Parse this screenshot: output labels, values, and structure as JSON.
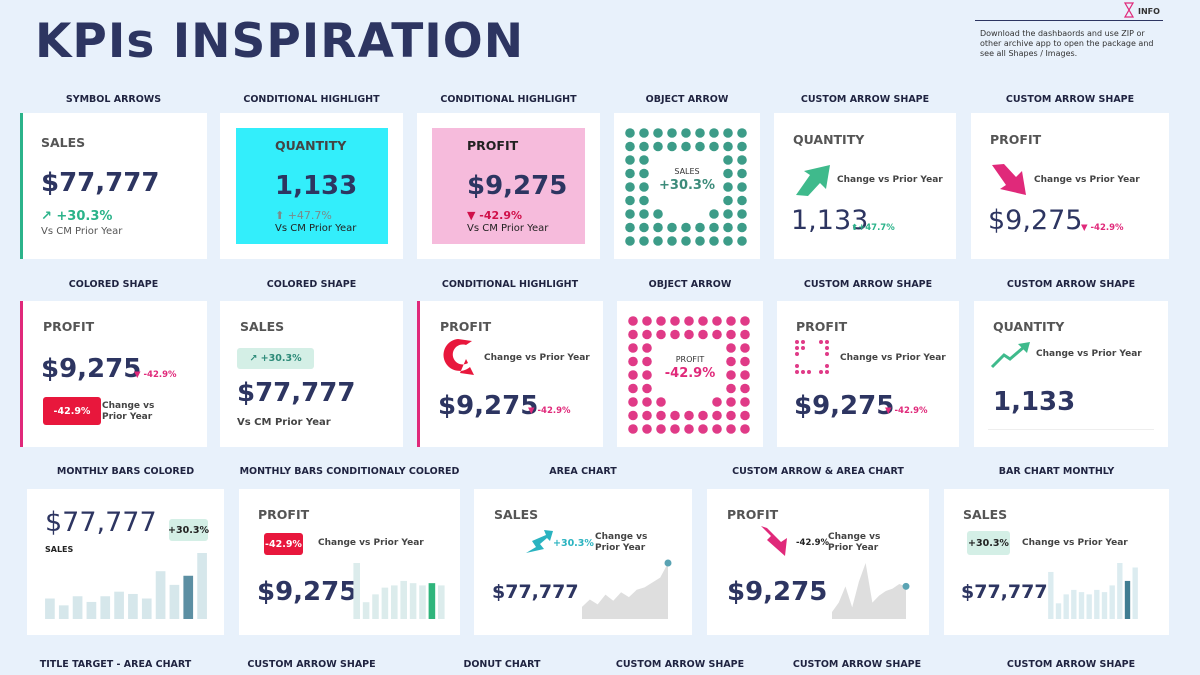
{
  "header": {
    "title": "KPIs INSPIRATION",
    "info_label": "INFO",
    "info_text": "Download the dashbaords and use ZIP or other archive app to open the package and see all Shapes / Images."
  },
  "rows": [
    {
      "cards": [
        {
          "section": "SYMBOL ARROWS",
          "metric": "SALES",
          "value": "$77,777",
          "change": "↗ +30.3%",
          "note": "Vs CM Prior Year"
        },
        {
          "section": "CONDITIONAL HIGHLIGHT",
          "metric": "QUANTITY",
          "value": "1,133",
          "change": "⬆ +47.7%",
          "note": "Vs CM Prior Year"
        },
        {
          "section": "CONDITIONAL HIGHLIGHT",
          "metric": "PROFIT",
          "value": "$9,275",
          "change": "▼  -42.9%",
          "note": "Vs CM Prior Year"
        },
        {
          "section": "OBJECT ARROW",
          "metric": "SALES",
          "change": "+30.3%"
        },
        {
          "section": "CUSTOM ARROW SHAPE",
          "metric": "QUANTITY",
          "note": "Change vs Prior Year",
          "value": "1,133",
          "change": "⬆+47.7%"
        },
        {
          "section": "CUSTOM ARROW SHAPE",
          "metric": "PROFIT",
          "note": "Change vs Prior Year",
          "value": "$9,275",
          "change": "▼ -42.9%"
        }
      ]
    },
    {
      "cards": [
        {
          "section": "COLORED SHAPE",
          "metric": "PROFIT",
          "value": "$9,275",
          "change": "▼ -42.9%",
          "badge": "-42.9%",
          "note": "Change vs Prior Year"
        },
        {
          "section": "COLORED SHAPE",
          "metric": "SALES",
          "badge": "↗ +30.3%",
          "value": "$77,777",
          "note": "Vs CM Prior Year"
        },
        {
          "section": "CONDITIONAL HIGHLIGHT",
          "metric": "PROFIT",
          "note": "Change vs Prior Year",
          "value": "$9,275",
          "change": "▼ -42.9%"
        },
        {
          "section": "OBJECT ARROW",
          "metric": "PROFIT",
          "change": "-42.9%"
        },
        {
          "section": "CUSTOM ARROW SHAPE",
          "metric": "PROFIT",
          "note": "Change vs Prior Year",
          "value": "$9,275",
          "change": "▼ -42.9%"
        },
        {
          "section": "CUSTOM ARROW SHAPE",
          "metric": "QUANTITY",
          "note": "Change vs Prior Year",
          "value": "1,133"
        }
      ]
    },
    {
      "cards": [
        {
          "section": "MONTHLY BARS COLORED",
          "value": "$77,777",
          "badge": "+30.3%",
          "metric": "SALES",
          "chart": {
            "type": "bar",
            "values": [
              18,
              12,
              20,
              15,
              20,
              24,
              22,
              18,
              42,
              30,
              38,
              58
            ],
            "colors": [
              "#d6e7eb",
              "#d6e7eb",
              "#d6e7eb",
              "#d6e7eb",
              "#d6e7eb",
              "#d6e7eb",
              "#d6e7eb",
              "#d6e7eb",
              "#d6e7eb",
              "#d6e7eb",
              "#5c8fa3",
              "#d6e7eb"
            ]
          }
        },
        {
          "section": "MONTHLY BARS CONDITIONALY COLORED",
          "metric": "PROFIT",
          "badge": "-42.9%",
          "note": "Change vs Prior Year",
          "value": "$9,275",
          "chart": {
            "type": "bar",
            "values": [
              50,
              15,
              22,
              28,
              30,
              34,
              32,
              30,
              32,
              30
            ],
            "colors": [
              "#dcecec",
              "#dcecec",
              "#dcecec",
              "#dcecec",
              "#dcecec",
              "#dcecec",
              "#dcecec",
              "#dcecec",
              "#2fb57c",
              "#dcecec"
            ]
          }
        },
        {
          "section": "AREA CHART",
          "metric": "SALES",
          "change": "+30.3%",
          "note": "Change vs Prior Year",
          "value": "$77,777",
          "chart": {
            "type": "area",
            "values": [
              10,
              16,
              12,
              20,
              15,
              22,
              18,
              24,
              26,
              30,
              34,
              46
            ],
            "color": "#dedede",
            "marker_color": "#5aa3b3"
          }
        },
        {
          "section": "CUSTOM ARROW & AREA CHART",
          "metric": "PROFIT",
          "change": "-42.9%",
          "note": "Change vs Prior Year",
          "value": "$9,275",
          "chart": {
            "type": "area",
            "values": [
              6,
              14,
              28,
              10,
              32,
              48,
              14,
              20,
              24,
              26,
              30,
              28
            ],
            "color": "#dedede",
            "marker_color": "#5aa3b3"
          }
        },
        {
          "section": "BAR CHART MONTHLY",
          "metric": "SALES",
          "badge": "+30.3%",
          "note": "Change vs Prior Year",
          "value": "$77,777",
          "chart": {
            "type": "bar",
            "values": [
              42,
              14,
              22,
              26,
              24,
              22,
              26,
              24,
              30,
              50,
              34,
              46
            ],
            "colors": [
              "#dcecf0",
              "#dcecf0",
              "#dcecf0",
              "#dcecf0",
              "#dcecf0",
              "#dcecf0",
              "#dcecf0",
              "#dcecf0",
              "#dcecf0",
              "#dcecf0",
              "#3f7d92",
              "#dcecf0"
            ]
          }
        }
      ]
    },
    {
      "cards": [
        {
          "section": "TITLE TARGET - AREA CHART"
        },
        {
          "section": "CUSTOM ARROW SHAPE"
        },
        {
          "section": "DONUT CHART"
        },
        {
          "section": "CUSTOM ARROW SHAPE"
        },
        {
          "section": "CUSTOM ARROW SHAPE"
        },
        {
          "section": "CUSTOM ARROW SHAPE"
        }
      ]
    }
  ]
}
